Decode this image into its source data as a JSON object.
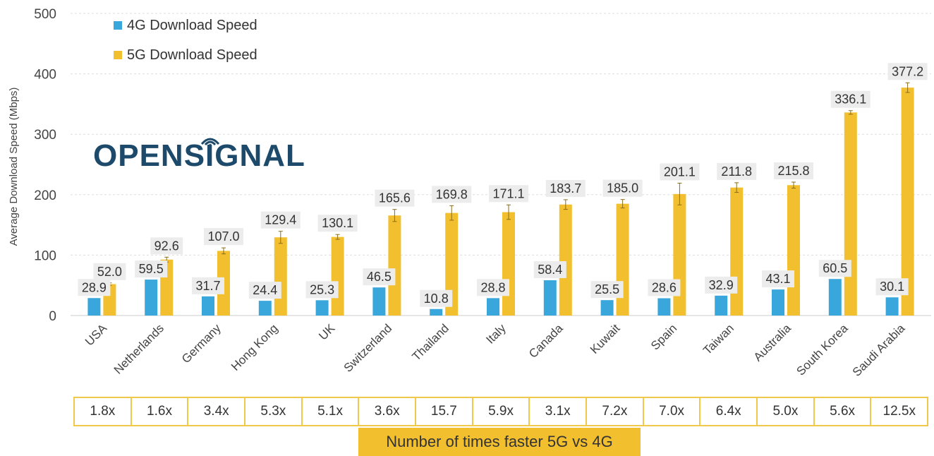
{
  "logo": {
    "text": "OPENSIGNAL",
    "text_before": "OPENS",
    "text_i": "I",
    "text_after": "GNAL",
    "color": "#1d4a6a"
  },
  "chart_data": {
    "type": "bar",
    "title": "",
    "xlabel": "",
    "ylabel": "Average Download Speed (Mbps)",
    "ylim": [
      0,
      500
    ],
    "yticks": [
      0,
      100,
      200,
      300,
      400,
      500
    ],
    "grid": true,
    "legend_position": "top-left",
    "categories": [
      "USA",
      "Netherlands",
      "Germany",
      "Hong Kong",
      "UK",
      "Switzerland",
      "Thailand",
      "Italy",
      "Canada",
      "Kuwait",
      "Spain",
      "Taiwan",
      "Australia",
      "South Korea",
      "Saudi Arabia"
    ],
    "series": [
      {
        "name": "4G Download Speed",
        "color": "#3aa7dc",
        "values": [
          28.9,
          59.5,
          31.7,
          24.4,
          25.3,
          46.5,
          10.8,
          28.8,
          58.4,
          25.5,
          28.6,
          32.9,
          43.1,
          60.5,
          30.1
        ],
        "labels": [
          "28.9",
          "59.5",
          "31.7",
          "24.4",
          "25.3",
          "46.5",
          "10.8",
          "28.8",
          "58.4",
          "25.5",
          "28.6",
          "32.9",
          "43.1",
          "60.5",
          "30.1"
        ]
      },
      {
        "name": "5G Download Speed",
        "color": "#f2bf2f",
        "values": [
          52.0,
          92.6,
          107.0,
          129.4,
          130.1,
          165.6,
          169.8,
          171.1,
          183.7,
          185.0,
          201.1,
          211.8,
          215.8,
          336.1,
          377.2
        ],
        "labels": [
          "52.0",
          "92.6",
          "107.0",
          "129.4",
          "130.1",
          "165.6",
          "169.8",
          "171.1",
          "183.7",
          "185.0",
          "201.1",
          "211.8",
          "215.8",
          "336.1",
          "377.2"
        ],
        "error_margin": [
          2,
          4,
          5,
          10,
          4,
          10,
          12,
          12,
          8,
          7,
          18,
          8,
          5,
          3,
          8
        ]
      }
    ],
    "ratio_label": "Number of times faster 5G vs 4G",
    "ratios": [
      "1.8x",
      "1.6x",
      "3.4x",
      "5.3x",
      "5.1x",
      "3.6x",
      "15.7",
      "5.9x",
      "3.1x",
      "7.2x",
      "7.0x",
      "6.4x",
      "5.0x",
      "5.6x",
      "12.5x"
    ]
  }
}
